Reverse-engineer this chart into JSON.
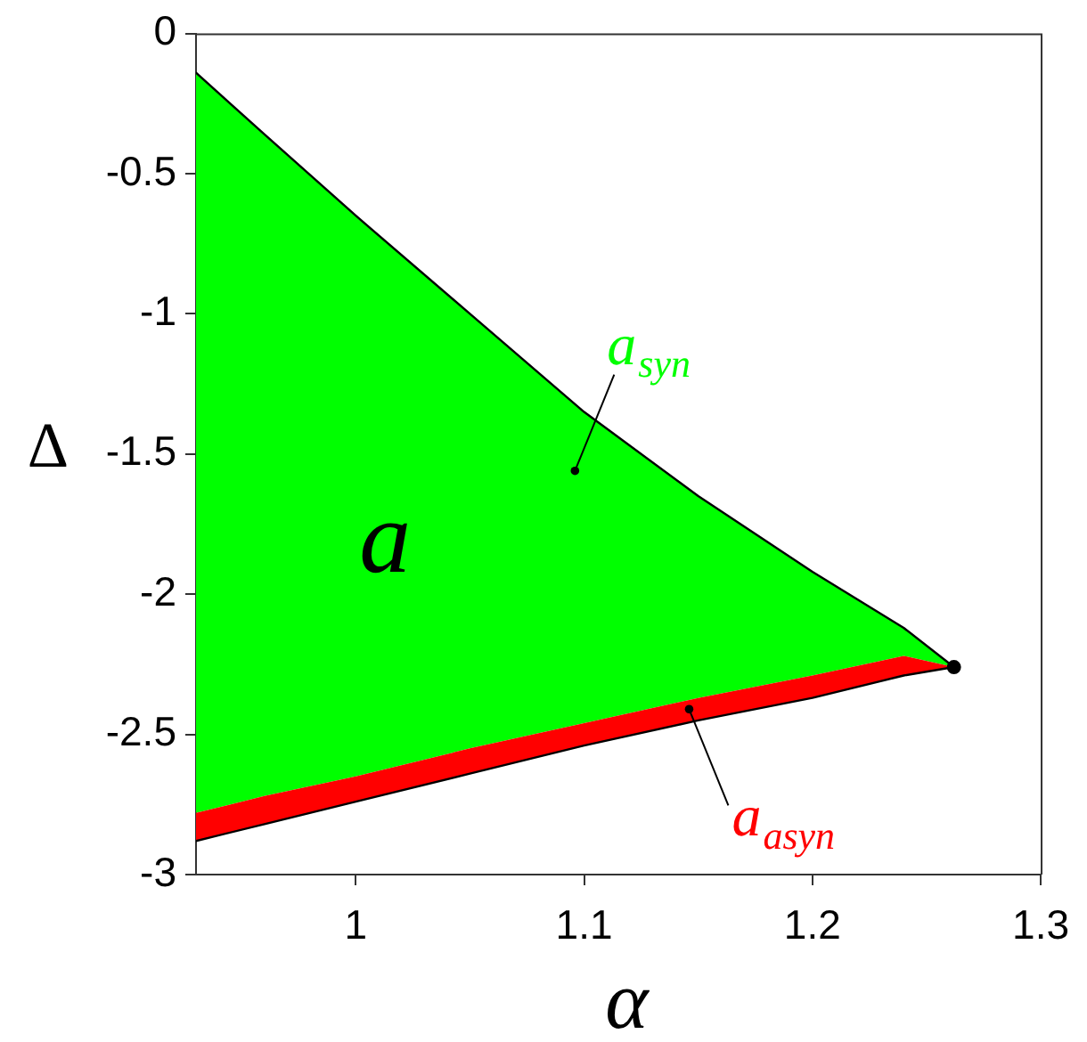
{
  "chart_data": {
    "type": "line",
    "xlabel": "α",
    "ylabel": "Δ",
    "x": [
      0.93,
      0.96,
      1.0,
      1.05,
      1.1,
      1.15,
      1.2,
      1.24,
      1.262
    ],
    "series": [
      {
        "color": "#00ff00",
        "values": [
          null,
          null,
          null,
          null,
          null,
          null,
          null,
          null,
          null
        ],
        "upper": [
          -0.14,
          -0.36,
          -0.65,
          -1.0,
          -1.35,
          -1.65,
          -1.92,
          -2.12,
          -2.26
        ],
        "lower": [
          -2.78,
          -2.72,
          -2.65,
          -2.55,
          -2.46,
          -2.37,
          -2.29,
          -2.22,
          -2.26
        ]
      },
      {
        "color": "#ff0000",
        "values": [
          null,
          null,
          null,
          null,
          null,
          null,
          null,
          null,
          null
        ],
        "upper": [
          -2.78,
          -2.72,
          -2.65,
          -2.55,
          -2.46,
          -2.37,
          -2.29,
          -2.22,
          -2.26
        ],
        "lower": [
          -2.88,
          -2.82,
          -2.74,
          -2.64,
          -2.54,
          -2.45,
          -2.37,
          -2.29,
          -2.26
        ]
      },
      {
        "color": "#000000",
        "values": [
          -0.14,
          -0.36,
          -0.65,
          -1.0,
          -1.35,
          -1.65,
          -1.92,
          -2.12,
          -2.26
        ]
      },
      {
        "color": "#000000",
        "values": [
          -2.88,
          -2.82,
          -2.74,
          -2.64,
          -2.54,
          -2.45,
          -2.37,
          -2.29,
          -2.26
        ]
      },
      {
        "type": "scatter",
        "color": "#000000",
        "x": [
          1.262
        ],
        "values": [
          -2.26
        ],
        "marker": "circle"
      }
    ],
    "xlim": [
      0.93,
      1.3
    ],
    "xticks": [
      1,
      1.1,
      1.2,
      1.3
    ],
    "ylim": [
      -3,
      0
    ],
    "yticks": [
      0,
      -0.5,
      -1,
      -1.5,
      -2,
      -2.5,
      -3
    ],
    "annotations": [
      {
        "text": "a$_{syn}$",
        "x": 1.096,
        "y": -1.56
      },
      {
        "text": "a$_{asyn}$",
        "x": 1.146,
        "y": -2.41
      },
      "a"
    ]
  }
}
